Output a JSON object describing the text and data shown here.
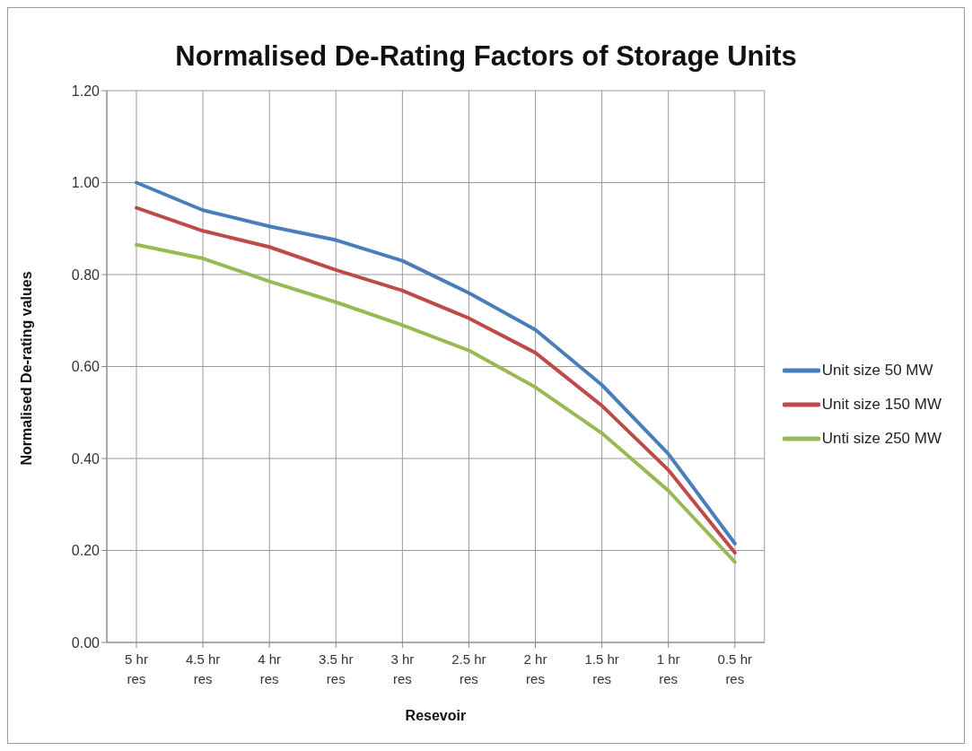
{
  "chart_data": {
    "type": "line",
    "title": "Normalised De-Rating Factors of Storage Units",
    "xlabel": "Resevoir",
    "ylabel": "Normalised De-rating values",
    "categories": [
      "5 hr res",
      "4.5 hr res",
      "4 hr res",
      "3.5 hr res",
      "3 hr res",
      "2.5 hr res",
      "2 hr res",
      "1.5 hr res",
      "1 hr res",
      "0.5 hr res"
    ],
    "series": [
      {
        "name": "Unit size 50 MW",
        "color": "#4a7ebb",
        "values": [
          1.0,
          0.94,
          0.905,
          0.875,
          0.83,
          0.76,
          0.68,
          0.56,
          0.41,
          0.215
        ]
      },
      {
        "name": "Unit size 150 MW",
        "color": "#be4b48",
        "values": [
          0.945,
          0.895,
          0.86,
          0.81,
          0.765,
          0.705,
          0.63,
          0.515,
          0.375,
          0.195
        ]
      },
      {
        "name": "Unti size 250 MW",
        "color": "#98b954",
        "values": [
          0.865,
          0.835,
          0.785,
          0.74,
          0.69,
          0.635,
          0.555,
          0.455,
          0.33,
          0.175
        ]
      }
    ],
    "ylim": [
      0,
      1.2
    ],
    "yticks": [
      {
        "value": 0,
        "label": "0.00"
      },
      {
        "value": 0.2,
        "label": "0.20"
      },
      {
        "value": 0.4,
        "label": "0.40"
      },
      {
        "value": 0.6,
        "label": "0.60"
      },
      {
        "value": 0.8,
        "label": "0.80"
      },
      {
        "value": 1.0,
        "label": "1.00"
      },
      {
        "value": 1.2,
        "label": "1.20"
      }
    ],
    "grid": true,
    "legend": "right",
    "marker": "none",
    "line_style": "solid"
  }
}
